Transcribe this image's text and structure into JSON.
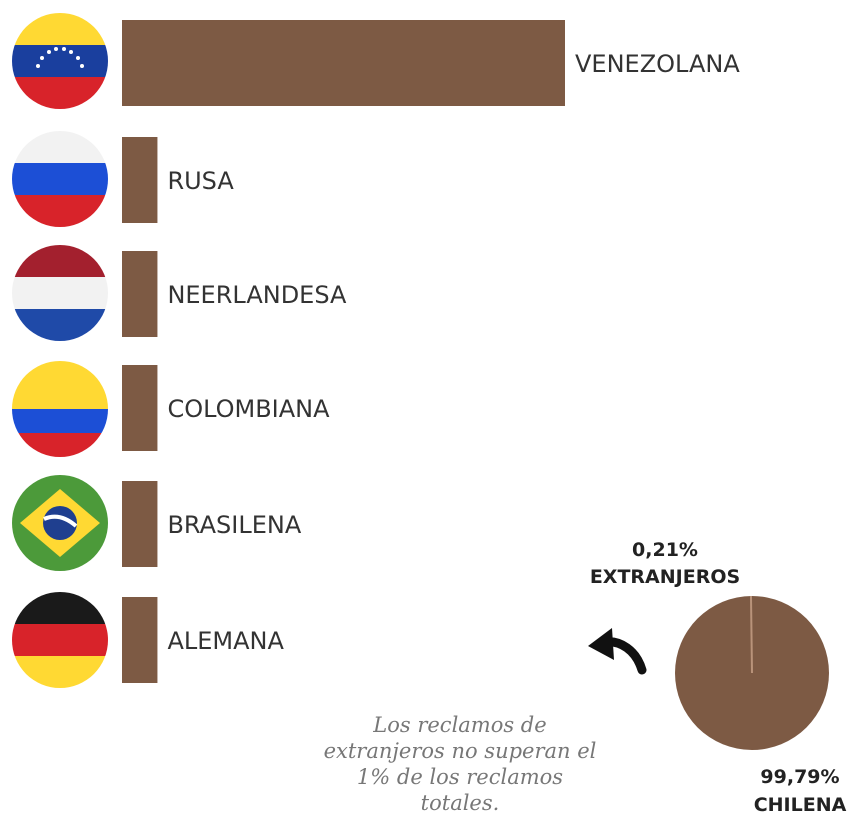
{
  "colors": {
    "bar": "#7d5a44",
    "pie": "#7d5a44",
    "pie_slice_edge": "#b9937a"
  },
  "chart_data": [
    {
      "type": "bar",
      "orientation": "horizontal",
      "categories": [
        "VENEZOLANA",
        "RUSA",
        "NEERLANDESA",
        "COLOMBIANA",
        "BRASILENA",
        "ALEMANA"
      ],
      "values": [
        100,
        8,
        8,
        8,
        8,
        8
      ],
      "flag_icons": [
        "venezuela-flag-icon",
        "russia-flag-icon",
        "netherlands-flag-icon",
        "colombia-flag-icon",
        "brazil-flag-icon",
        "germany-flag-icon"
      ],
      "xlabel": "",
      "ylabel": "",
      "grid": false
    },
    {
      "type": "pie",
      "slices": [
        {
          "value_label": "0,21%",
          "name": "EXTRANJEROS",
          "value": 0.21
        },
        {
          "value_label": "99,79%",
          "name": "CHILENA",
          "value": 99.79
        }
      ]
    }
  ],
  "note_lines": [
    "Los reclamos de",
    "extranjeros no superan el",
    "1%  de los reclamos",
    "totales."
  ],
  "arrow_icon": "curved-arrow-left-icon"
}
